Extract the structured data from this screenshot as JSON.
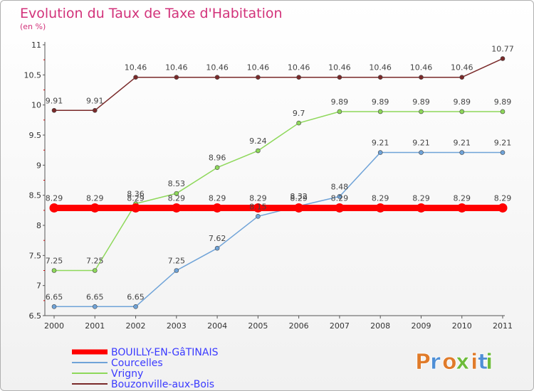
{
  "title": "Evolution du Taux de Taxe d'Habitation",
  "subtitle": "(en %)",
  "logo": {
    "letters": [
      "P",
      "r",
      "o",
      "x",
      "i",
      "t",
      "i"
    ],
    "colors": [
      "#e07b2a",
      "#4f8fd6",
      "#e07b2a",
      "#6dbb3a",
      "#e07b2a",
      "#4f8fd6",
      "#6dbb3a"
    ]
  },
  "chart_data": {
    "type": "line",
    "x": [
      "2000",
      "2001",
      "2002",
      "2003",
      "2004",
      "2005",
      "2006",
      "2007",
      "2008",
      "2009",
      "2010",
      "2011"
    ],
    "ylim": [
      6.5,
      11
    ],
    "yticks": [
      "6.5",
      "7",
      "7.5",
      "8",
      "8.5",
      "9",
      "9.5",
      "10",
      "10.5",
      "11"
    ],
    "grid": false,
    "legend_position": "bottom-left",
    "series": [
      {
        "name": "BOUILLY-EN-GâTINAIS",
        "color": "#ff0000",
        "width": 9,
        "values": [
          8.29,
          8.29,
          8.29,
          8.29,
          8.29,
          8.29,
          8.29,
          8.29,
          8.29,
          8.29,
          8.29,
          8.29
        ],
        "labels": [
          "8.29",
          "8.29",
          "8.29",
          "8.29",
          "8.29",
          "8.29",
          "8.29",
          "8.29",
          "8.29",
          "8.29",
          "8.29",
          "8.29"
        ]
      },
      {
        "name": "Courcelles",
        "color": "#6fa3d8",
        "width": 1.5,
        "values": [
          6.65,
          6.65,
          6.65,
          7.25,
          7.62,
          8.15,
          8.32,
          8.48,
          9.21,
          9.21,
          9.21,
          9.21
        ],
        "labels": [
          "6.65",
          "6.65",
          "6.65",
          "7.25",
          "7.62",
          "8.15",
          "8.32",
          "8.48",
          "9.21",
          "9.21",
          "9.21",
          "9.21"
        ]
      },
      {
        "name": "Vrigny",
        "color": "#8ed85a",
        "width": 1.5,
        "values": [
          7.25,
          7.25,
          8.36,
          8.53,
          8.96,
          9.24,
          9.7,
          9.89,
          9.89,
          9.89,
          9.89,
          9.89
        ],
        "labels": [
          "7.25",
          "7.25",
          "8.36",
          "8.53",
          "8.96",
          "9.24",
          "9.7",
          "9.89",
          "9.89",
          "9.89",
          "9.89",
          "9.89"
        ]
      },
      {
        "name": "Bouzonville-aux-Bois",
        "color": "#7a2a2a",
        "width": 1.5,
        "values": [
          9.91,
          9.91,
          10.46,
          10.46,
          10.46,
          10.46,
          10.46,
          10.46,
          10.46,
          10.46,
          10.46,
          10.77
        ],
        "labels": [
          "9.91",
          "9.91",
          "10.46",
          "10.46",
          "10.46",
          "10.46",
          "10.46",
          "10.46",
          "10.46",
          "10.46",
          "10.46",
          "10.77"
        ]
      }
    ]
  }
}
